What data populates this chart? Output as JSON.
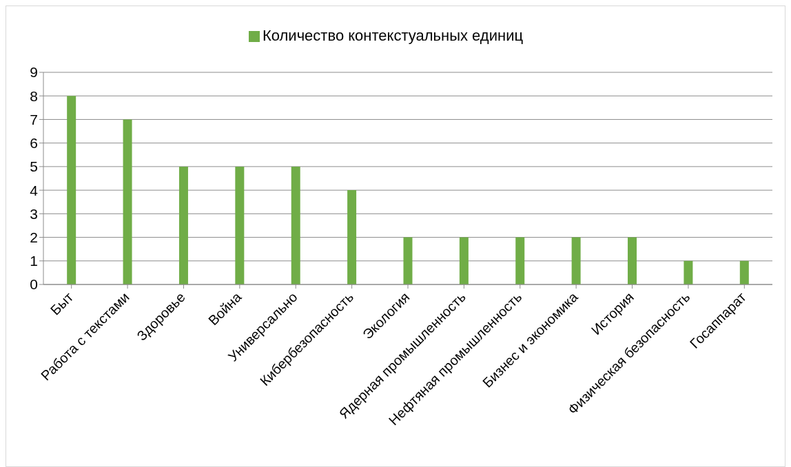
{
  "chart_data": {
    "type": "bar",
    "categories": [
      "Быт",
      "Работа с текстами",
      "Здоровье",
      "Война",
      "Универсально",
      "Кибербезопасность",
      "Экология",
      "Ядерная промышленность",
      "Нефтяная промышленность",
      "Бизнес и экономика",
      "История",
      "Физическая безопасность",
      "Госаппарат"
    ],
    "series": [
      {
        "name": "Количество контекстуальных единиц",
        "color": "#70ad47",
        "values": [
          8,
          7,
          5,
          5,
          5,
          4,
          2,
          2,
          2,
          2,
          2,
          1,
          1
        ]
      }
    ],
    "ylim": [
      0,
      9
    ],
    "yticks": [
      0,
      1,
      2,
      3,
      4,
      5,
      6,
      7,
      8,
      9
    ],
    "grid": "y",
    "legend": "top"
  }
}
